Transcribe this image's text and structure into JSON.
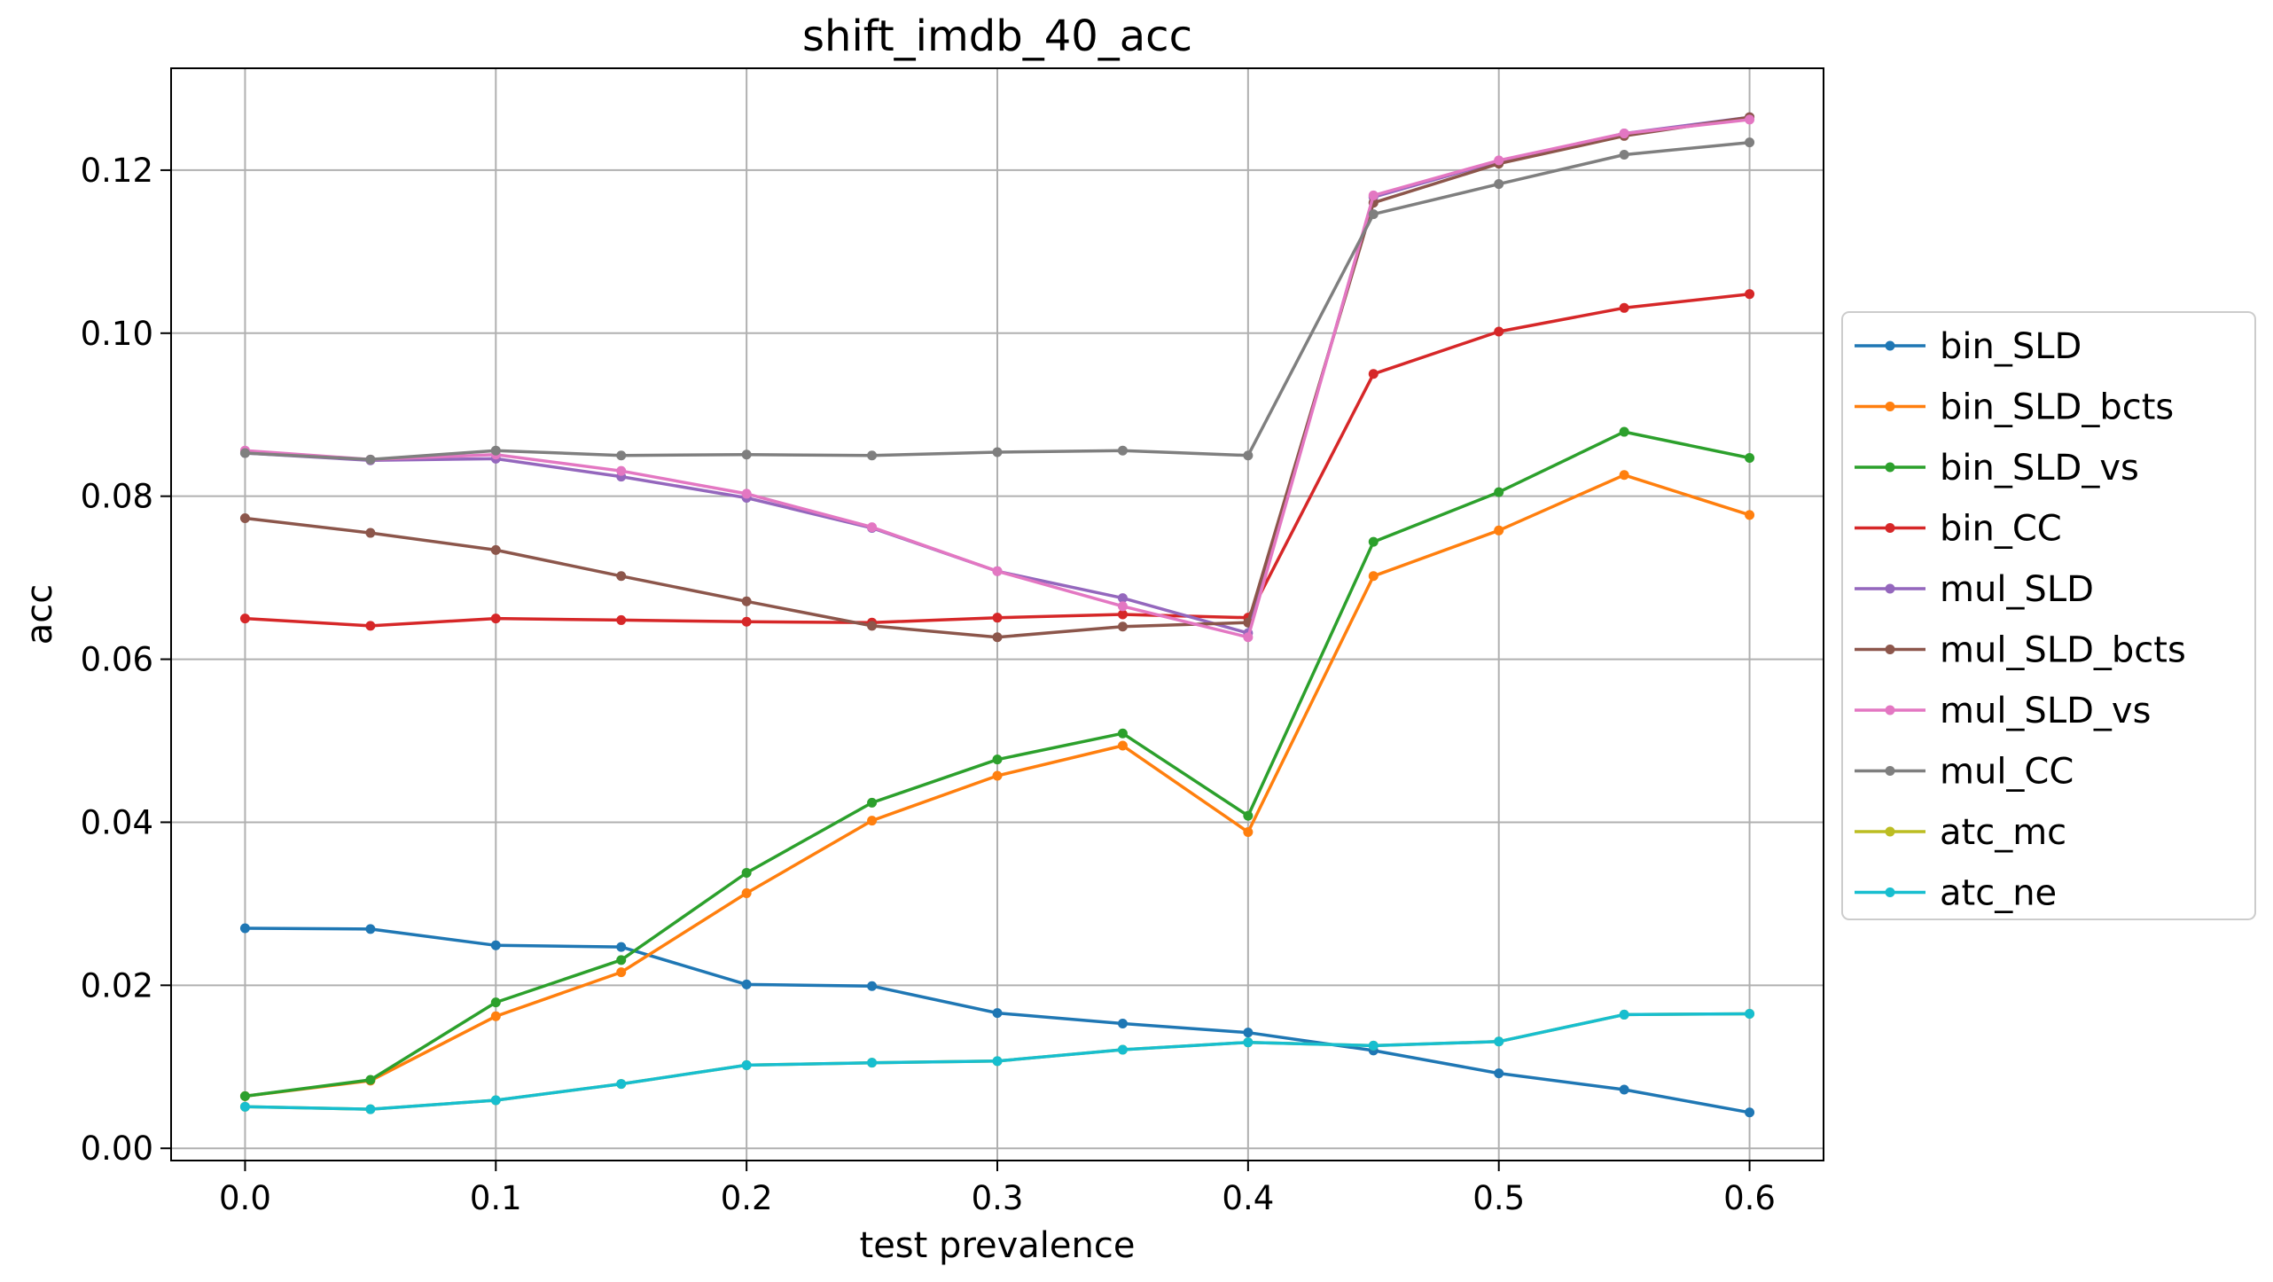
{
  "chart_data": {
    "type": "line",
    "title": "shift_imdb_40_acc",
    "xlabel": "test prevalence",
    "ylabel": "acc",
    "xlim": [
      -0.0295,
      0.6295
    ],
    "ylim": [
      -0.0015,
      0.1325
    ],
    "xticks": [
      0.0,
      0.1,
      0.2,
      0.3,
      0.4,
      0.5,
      0.6
    ],
    "xtick_labels": [
      "0.0",
      "0.1",
      "0.2",
      "0.3",
      "0.4",
      "0.5",
      "0.6"
    ],
    "yticks": [
      0.0,
      0.02,
      0.04,
      0.06,
      0.08,
      0.1,
      0.12
    ],
    "ytick_labels": [
      "0.00",
      "0.02",
      "0.04",
      "0.06",
      "0.08",
      "0.10",
      "0.12"
    ],
    "grid": true,
    "legend_position": "right-outside",
    "x": [
      0.0,
      0.05,
      0.1,
      0.15,
      0.2,
      0.25,
      0.3,
      0.35,
      0.4,
      0.45,
      0.5,
      0.55,
      0.6
    ],
    "series": [
      {
        "name": "bin_SLD",
        "color": "#1f77b4",
        "values": [
          0.027,
          0.0269,
          0.0249,
          0.0247,
          0.0201,
          0.0199,
          0.0166,
          0.0153,
          0.0142,
          0.012,
          0.0092,
          0.0072,
          0.0044
        ]
      },
      {
        "name": "bin_SLD_bcts",
        "color": "#ff7f0e",
        "values": [
          0.0064,
          0.0083,
          0.0162,
          0.0216,
          0.0313,
          0.0402,
          0.0457,
          0.0494,
          0.0388,
          0.0702,
          0.0758,
          0.0826,
          0.0777
        ]
      },
      {
        "name": "bin_SLD_vs",
        "color": "#2ca02c",
        "values": [
          0.0064,
          0.0084,
          0.0179,
          0.0231,
          0.0338,
          0.0424,
          0.0477,
          0.0509,
          0.0408,
          0.0744,
          0.0805,
          0.0879,
          0.0847
        ]
      },
      {
        "name": "bin_CC",
        "color": "#d62728",
        "values": [
          0.065,
          0.0641,
          0.065,
          0.0648,
          0.0646,
          0.0645,
          0.0651,
          0.0655,
          0.0651,
          0.095,
          0.1002,
          0.1031,
          0.1048
        ]
      },
      {
        "name": "mul_SLD",
        "color": "#9467bd",
        "values": [
          0.0853,
          0.0844,
          0.0846,
          0.0824,
          0.0798,
          0.0761,
          0.0708,
          0.0675,
          0.0632,
          0.1167,
          0.1211,
          0.1245,
          0.1265
        ]
      },
      {
        "name": "mul_SLD_bcts",
        "color": "#8c564b",
        "values": [
          0.0773,
          0.0755,
          0.0734,
          0.0702,
          0.0671,
          0.0641,
          0.0627,
          0.064,
          0.0645,
          0.116,
          0.1208,
          0.1242,
          0.1265
        ]
      },
      {
        "name": "mul_SLD_vs",
        "color": "#e377c2",
        "values": [
          0.0856,
          0.0845,
          0.0851,
          0.0831,
          0.0803,
          0.0762,
          0.0708,
          0.0665,
          0.0627,
          0.1169,
          0.1212,
          0.1245,
          0.1262
        ]
      },
      {
        "name": "mul_CC",
        "color": "#7f7f7f",
        "values": [
          0.0853,
          0.0845,
          0.0856,
          0.085,
          0.0851,
          0.085,
          0.0854,
          0.0856,
          0.085,
          0.1146,
          0.1183,
          0.1219,
          0.1234
        ]
      },
      {
        "name": "atc_mc",
        "color": "#bcbd22",
        "values": [
          0.0051,
          0.0048,
          0.0059,
          0.0079,
          0.0102,
          0.0105,
          0.0107,
          0.0121,
          0.013,
          0.0126,
          0.0131,
          0.0164,
          0.0165
        ]
      },
      {
        "name": "atc_ne",
        "color": "#17becf",
        "values": [
          0.0051,
          0.0048,
          0.0059,
          0.0079,
          0.0102,
          0.0105,
          0.0107,
          0.0121,
          0.013,
          0.0126,
          0.0131,
          0.0164,
          0.0165
        ]
      }
    ]
  }
}
